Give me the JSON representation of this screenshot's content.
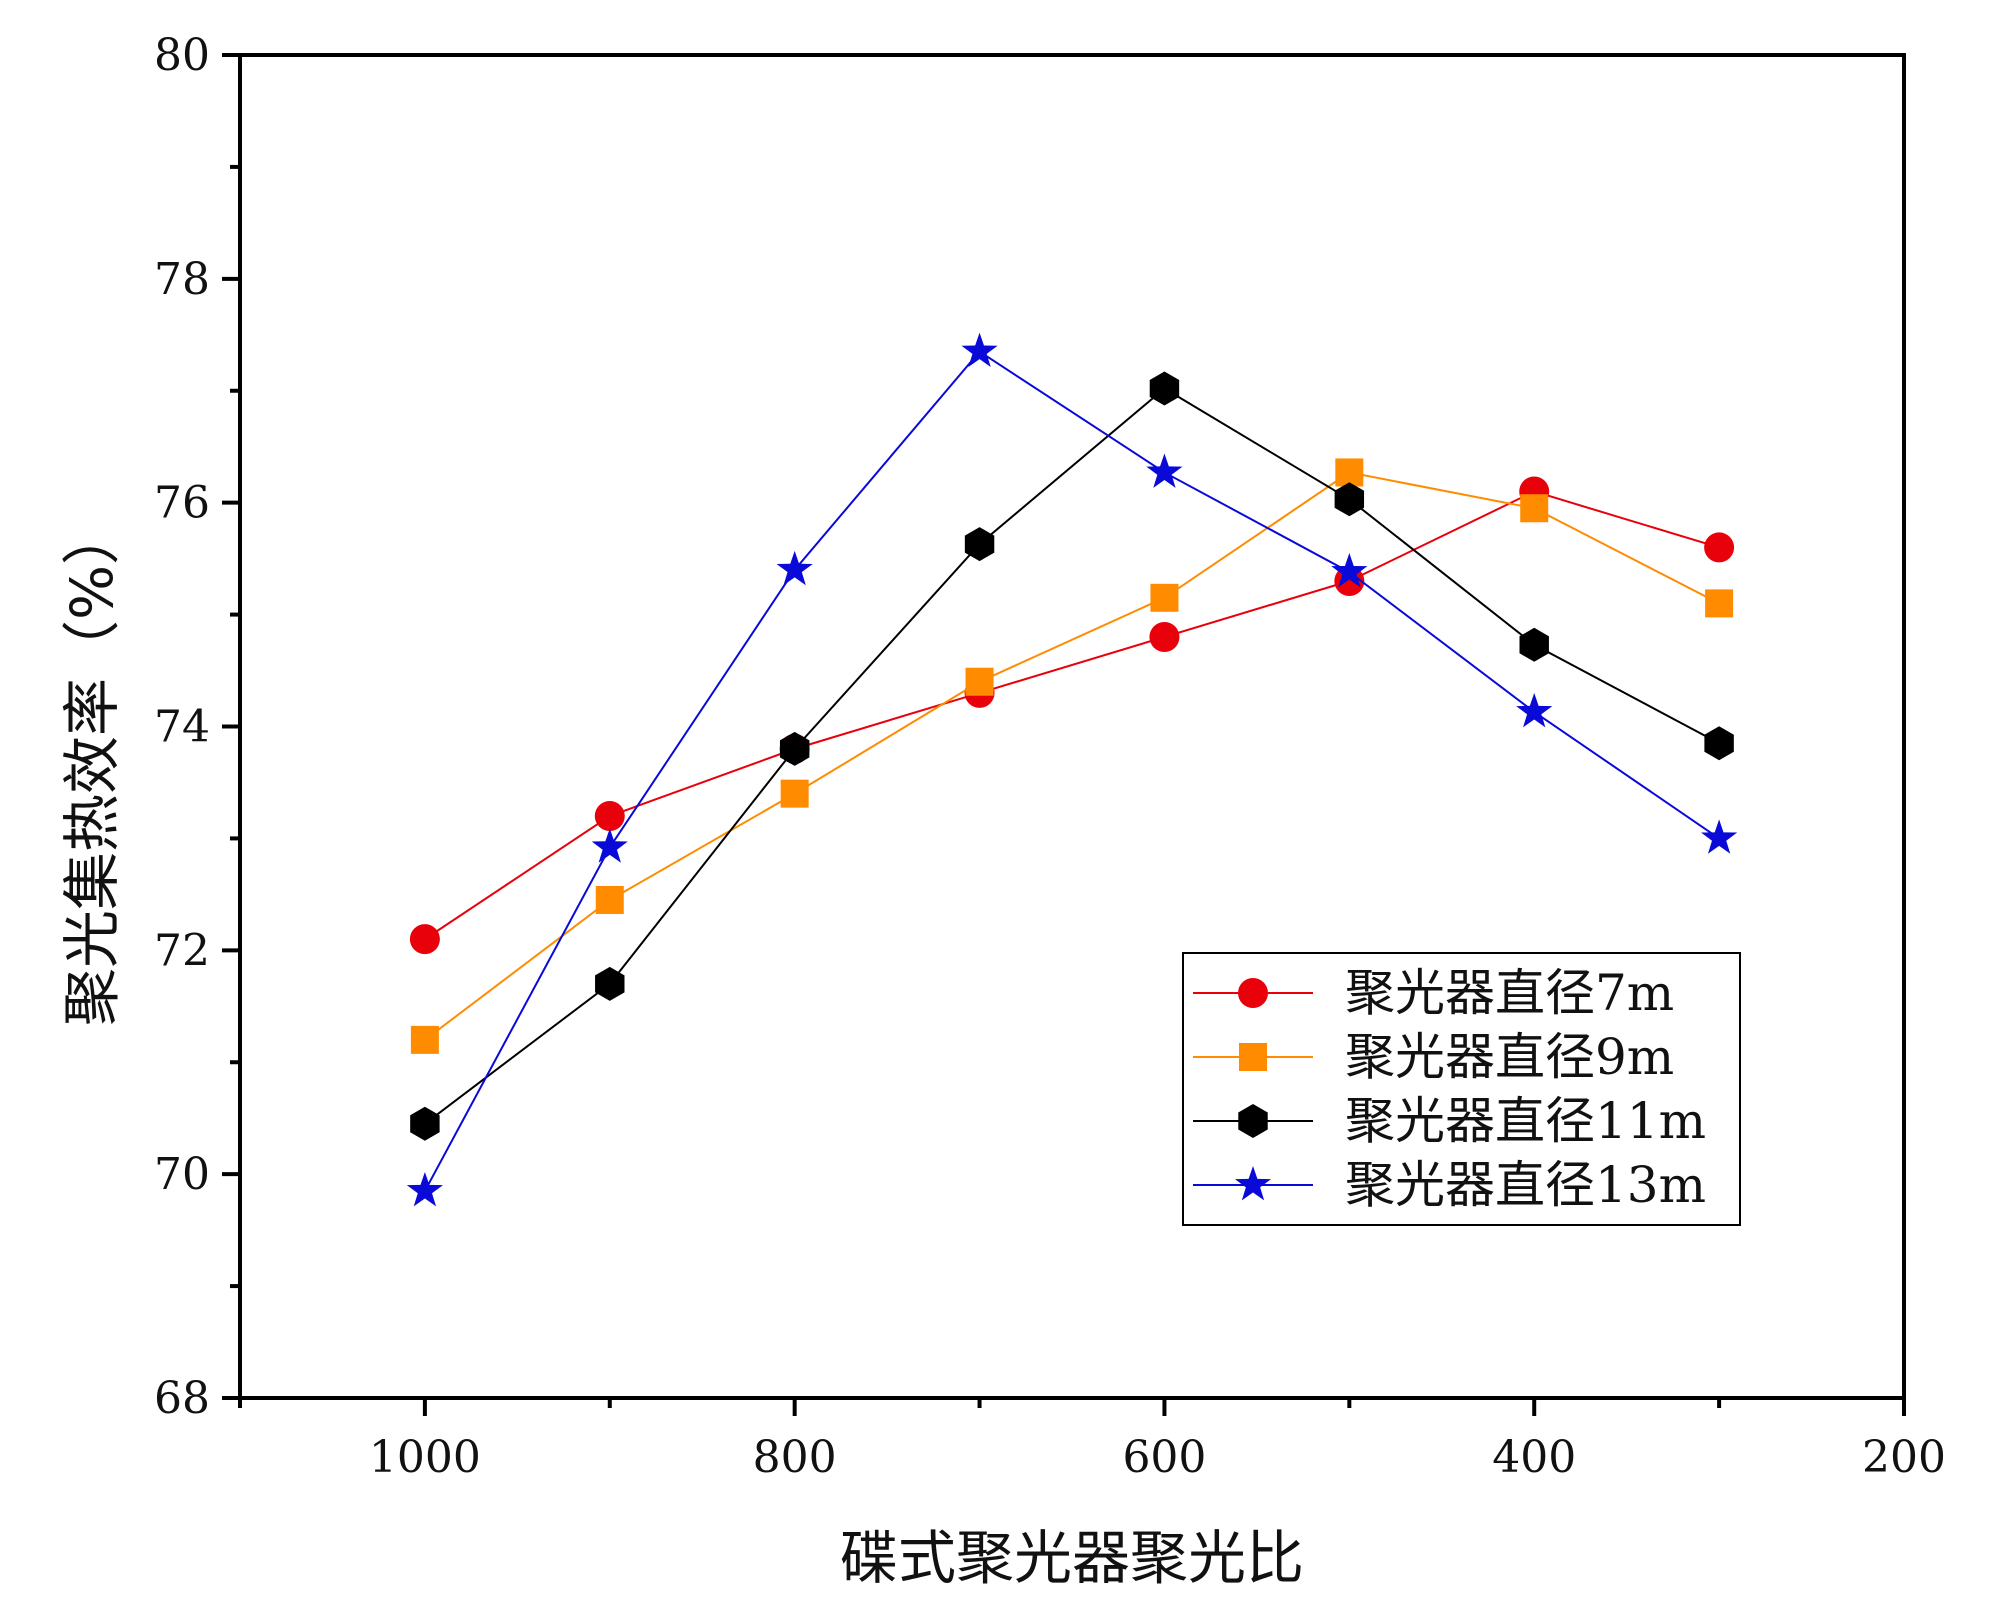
{
  "chart_data": {
    "type": "line",
    "xlabel": "碟式聚光器聚光比",
    "ylabel": "聚光集热效率（%）",
    "xlim": [
      1100,
      200
    ],
    "ylim": [
      68,
      80
    ],
    "x_ticks": [
      1000,
      800,
      600,
      400,
      200
    ],
    "x_tick_labels": [
      "1000",
      "800",
      "600",
      "400",
      "200"
    ],
    "y_ticks": [
      68,
      70,
      72,
      74,
      76,
      78,
      80
    ],
    "y_tick_labels": [
      "68",
      "70",
      "72",
      "74",
      "76",
      "78",
      "80"
    ],
    "x_minor_ticks": [
      1100,
      900,
      700,
      500,
      300
    ],
    "y_minor_ticks": [
      69,
      71,
      73,
      75,
      77,
      79
    ],
    "x": [
      1000,
      900,
      800,
      700,
      600,
      500,
      400,
      300
    ],
    "legend_position": "bottom-right",
    "series": [
      {
        "name": "聚光器直径7m",
        "color": "#e8000b",
        "marker": "circle",
        "values": [
          72.1,
          73.2,
          73.8,
          74.3,
          74.8,
          75.3,
          76.1,
          75.6
        ]
      },
      {
        "name": "聚光器直径9m",
        "color": "#ff8c00",
        "marker": "square",
        "values": [
          71.2,
          72.45,
          73.4,
          74.4,
          75.15,
          76.27,
          75.95,
          75.1
        ]
      },
      {
        "name": "聚光器直径11m",
        "color": "#000000",
        "marker": "hexagon",
        "values": [
          70.45,
          71.7,
          73.8,
          75.63,
          77.02,
          76.03,
          74.73,
          73.85
        ]
      },
      {
        "name": "聚光器直径13m",
        "color": "#0a0ad8",
        "marker": "star",
        "values": [
          69.85,
          72.92,
          75.4,
          77.35,
          76.27,
          75.38,
          74.13,
          73.0
        ]
      }
    ]
  }
}
